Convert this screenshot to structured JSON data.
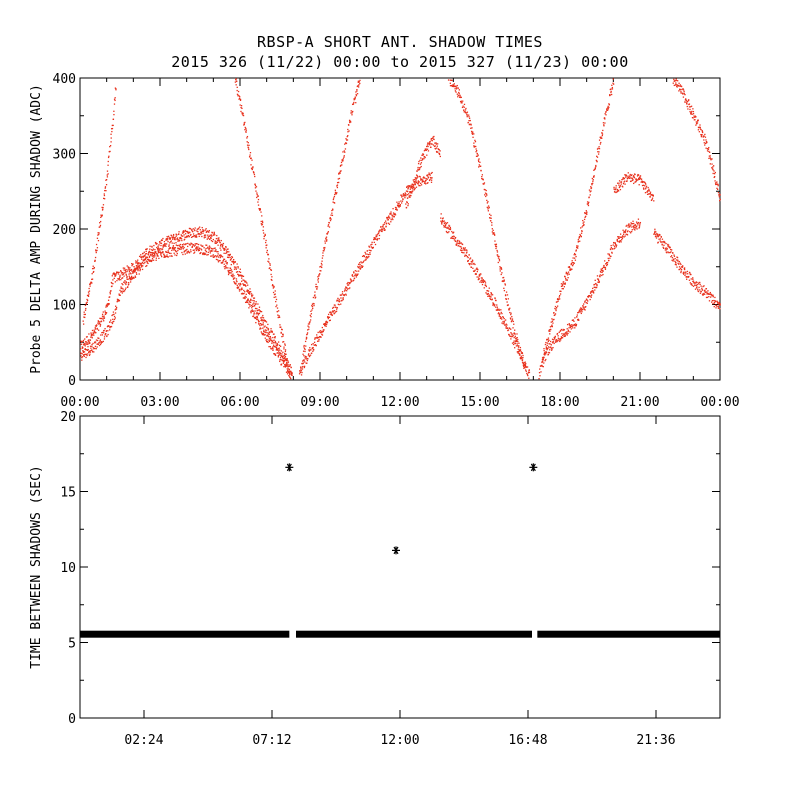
{
  "title": "RBSP-A SHORT ANT. SHADOW TIMES",
  "subtitle": "2015 326 (11/22) 00:00 to 2015 327 (11/23) 00:00",
  "colors": {
    "top_series": "#e8301c",
    "bottom_series": "#000000",
    "axes": "#000000"
  },
  "chart_data": [
    {
      "type": "scatter",
      "ylabel": "Probe 5 DELTA AMP DURING SHADOW (ADC)",
      "xlim": [
        0,
        24
      ],
      "ylim": [
        0,
        400
      ],
      "x_unit": "hours",
      "x_tick_values": [
        0,
        3,
        6,
        9,
        12,
        15,
        18,
        21,
        24
      ],
      "x_tick_labels": [
        "00:00",
        "03:00",
        "06:00",
        "09:00",
        "12:00",
        "15:00",
        "18:00",
        "21:00",
        "00:00"
      ],
      "y_ticks": [
        0,
        100,
        200,
        300,
        400
      ],
      "marker": "dot",
      "series": [
        {
          "x": [
            0.0,
            0.5,
            1.0,
            1.2,
            1.5,
            2.0,
            2.5,
            3.0,
            3.5,
            4.0,
            4.5,
            5.0,
            5.5,
            6.0,
            6.5,
            7.0,
            7.5,
            7.95
          ],
          "y": [
            45,
            62,
            95,
            135,
            140,
            150,
            170,
            180,
            188,
            195,
            198,
            190,
            170,
            140,
            105,
            70,
            40,
            10
          ]
        },
        {
          "x": [
            0.0,
            0.5,
            1.0,
            1.3,
            1.5,
            2.0,
            2.5,
            3.0,
            3.5,
            4.0,
            4.5,
            5.0,
            5.5,
            6.0,
            6.5,
            7.0,
            7.5,
            7.95
          ],
          "y": [
            32,
            45,
            65,
            90,
            120,
            140,
            160,
            168,
            172,
            175,
            175,
            170,
            150,
            122,
            88,
            55,
            28,
            6
          ]
        },
        {
          "x": [
            0.1,
            0.4,
            0.7,
            1.0,
            1.2,
            1.35
          ],
          "y": [
            80,
            130,
            200,
            270,
            340,
            400
          ]
        },
        {
          "x": [
            5.8,
            6.2,
            6.6,
            7.0,
            7.4,
            7.8
          ],
          "y": [
            400,
            330,
            250,
            170,
            90,
            15
          ]
        },
        {
          "x": [
            8.2,
            8.7,
            9.2,
            9.7,
            10.2,
            10.7,
            11.2,
            11.7,
            12.2,
            12.7,
            13.2
          ],
          "y": [
            8,
            45,
            75,
            105,
            135,
            165,
            195,
            220,
            250,
            265,
            270
          ]
        },
        {
          "x": [
            8.3,
            8.6,
            9.0,
            9.4,
            9.8,
            10.2,
            10.5
          ],
          "y": [
            25,
            80,
            150,
            220,
            290,
            360,
            400
          ]
        },
        {
          "x": [
            12.2,
            12.7,
            13.2,
            13.5
          ],
          "y": [
            230,
            285,
            320,
            300
          ]
        },
        {
          "x": [
            13.5,
            14.0,
            14.5,
            15.0,
            15.5,
            16.0,
            16.5,
            16.85
          ],
          "y": [
            215,
            190,
            165,
            135,
            105,
            70,
            35,
            6
          ]
        },
        {
          "x": [
            13.8,
            14.2,
            14.6,
            15.0,
            15.4,
            15.8,
            16.2,
            16.7
          ],
          "y": [
            400,
            380,
            340,
            280,
            210,
            140,
            75,
            12
          ]
        },
        {
          "x": [
            17.2,
            17.5,
            18.0,
            18.5,
            19.0,
            19.5,
            20.0,
            20.5,
            21.0
          ],
          "y": [
            8,
            40,
            60,
            75,
            105,
            140,
            180,
            200,
            210
          ]
        },
        {
          "x": [
            17.3,
            17.7,
            18.0,
            18.5,
            19.0,
            19.5,
            20.0
          ],
          "y": [
            25,
            80,
            120,
            160,
            230,
            320,
            400
          ]
        },
        {
          "x": [
            20.0,
            20.5,
            21.0,
            21.5
          ],
          "y": [
            250,
            270,
            265,
            240
          ]
        },
        {
          "x": [
            21.5,
            22.0,
            22.5,
            23.0,
            23.5,
            24.0
          ],
          "y": [
            195,
            175,
            150,
            130,
            115,
            95
          ]
        },
        {
          "x": [
            22.2,
            22.6,
            23.0,
            23.4,
            23.8,
            24.0
          ],
          "y": [
            400,
            380,
            350,
            320,
            270,
            240
          ]
        }
      ]
    },
    {
      "type": "scatter",
      "ylabel": "TIME BETWEEN SHADOWS (SEC)",
      "xlim": [
        0,
        24
      ],
      "ylim": [
        0,
        20
      ],
      "x_unit": "hours",
      "x_tick_values": [
        2.4,
        7.2,
        12.0,
        16.8,
        21.6
      ],
      "x_tick_labels": [
        "02:24",
        "07:12",
        "12:00",
        "16:48",
        "21:36"
      ],
      "y_ticks": [
        0,
        5,
        10,
        15,
        20
      ],
      "marker": "asterisk",
      "baseline": {
        "y": 5.55,
        "x_start": 0.0,
        "x_end": 24.0,
        "gaps": [
          [
            7.85,
            8.1
          ],
          [
            16.95,
            17.15
          ]
        ]
      },
      "outliers": [
        {
          "x": 7.85,
          "y": 16.6
        },
        {
          "x": 11.85,
          "y": 11.1
        },
        {
          "x": 17.0,
          "y": 16.6
        }
      ]
    }
  ]
}
